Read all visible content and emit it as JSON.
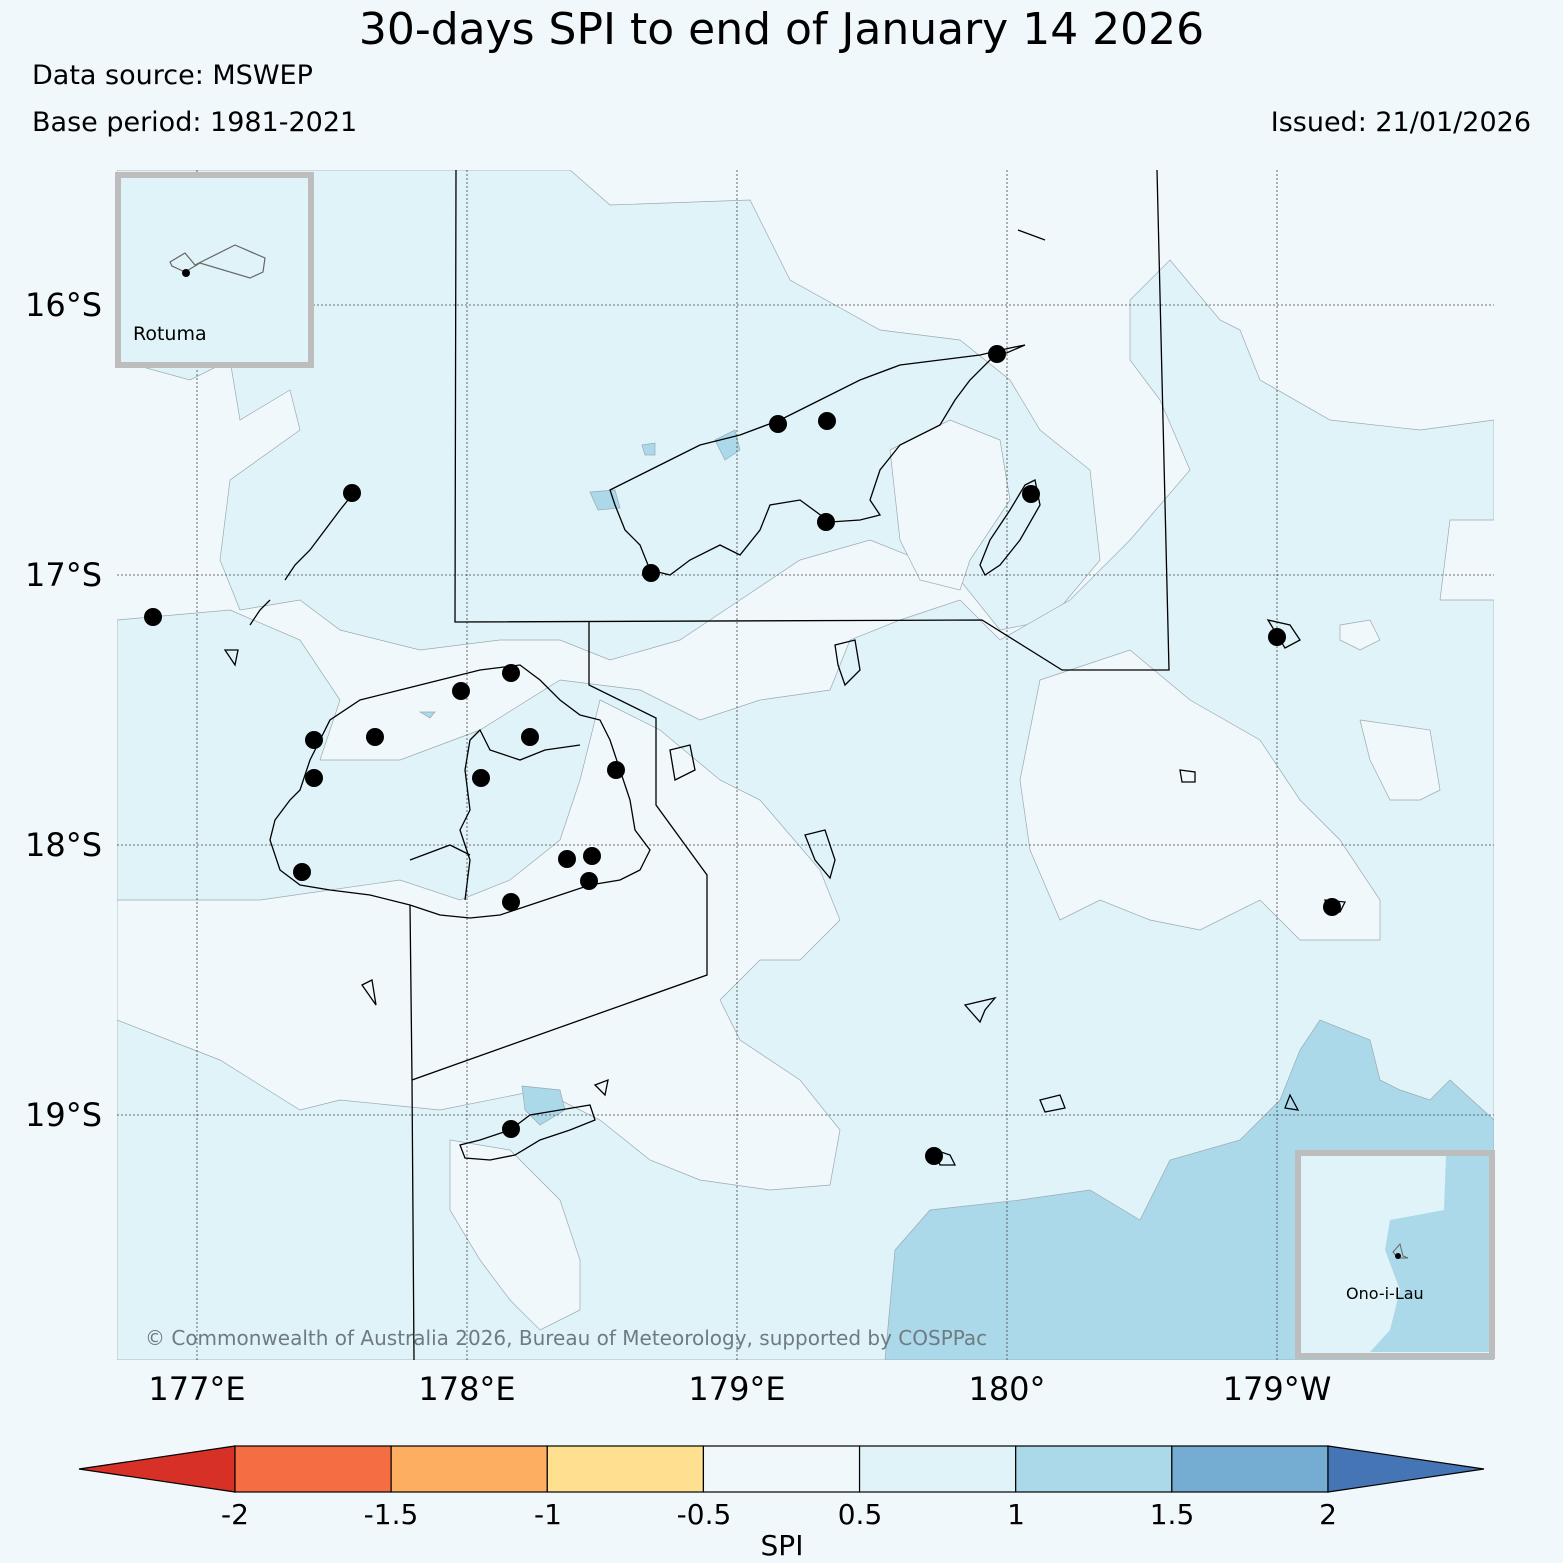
{
  "header": {
    "title": "30-days SPI to end of January 14 2026",
    "data_source": "Data source: MSWEP",
    "base_period": "Base period: 1981-2021",
    "issued": "Issued: 21/01/2026"
  },
  "map": {
    "lat_labels": [
      "16°S",
      "17°S",
      "18°S",
      "19°S"
    ],
    "lon_labels": [
      "177°E",
      "178°E",
      "179°E",
      "180°",
      "179°W"
    ],
    "insets": {
      "rotuma": "Rotuma",
      "ono_i_lau": "Ono-i-Lau"
    },
    "copyright": "© Commonwealth of Australia 2026, Bureau of Meteorology, supported by COSPPac"
  },
  "legend": {
    "label": "SPI",
    "ticks": [
      "-2",
      "-1.5",
      "-1",
      "-0.5",
      "0.5",
      "1",
      "1.5",
      "2"
    ],
    "colors": [
      "#d73027",
      "#f46d43",
      "#fdae61",
      "#fee090",
      "#f0f8fc",
      "#e0f3f8",
      "#abd9e9",
      "#74add1",
      "#4575b4"
    ]
  }
}
